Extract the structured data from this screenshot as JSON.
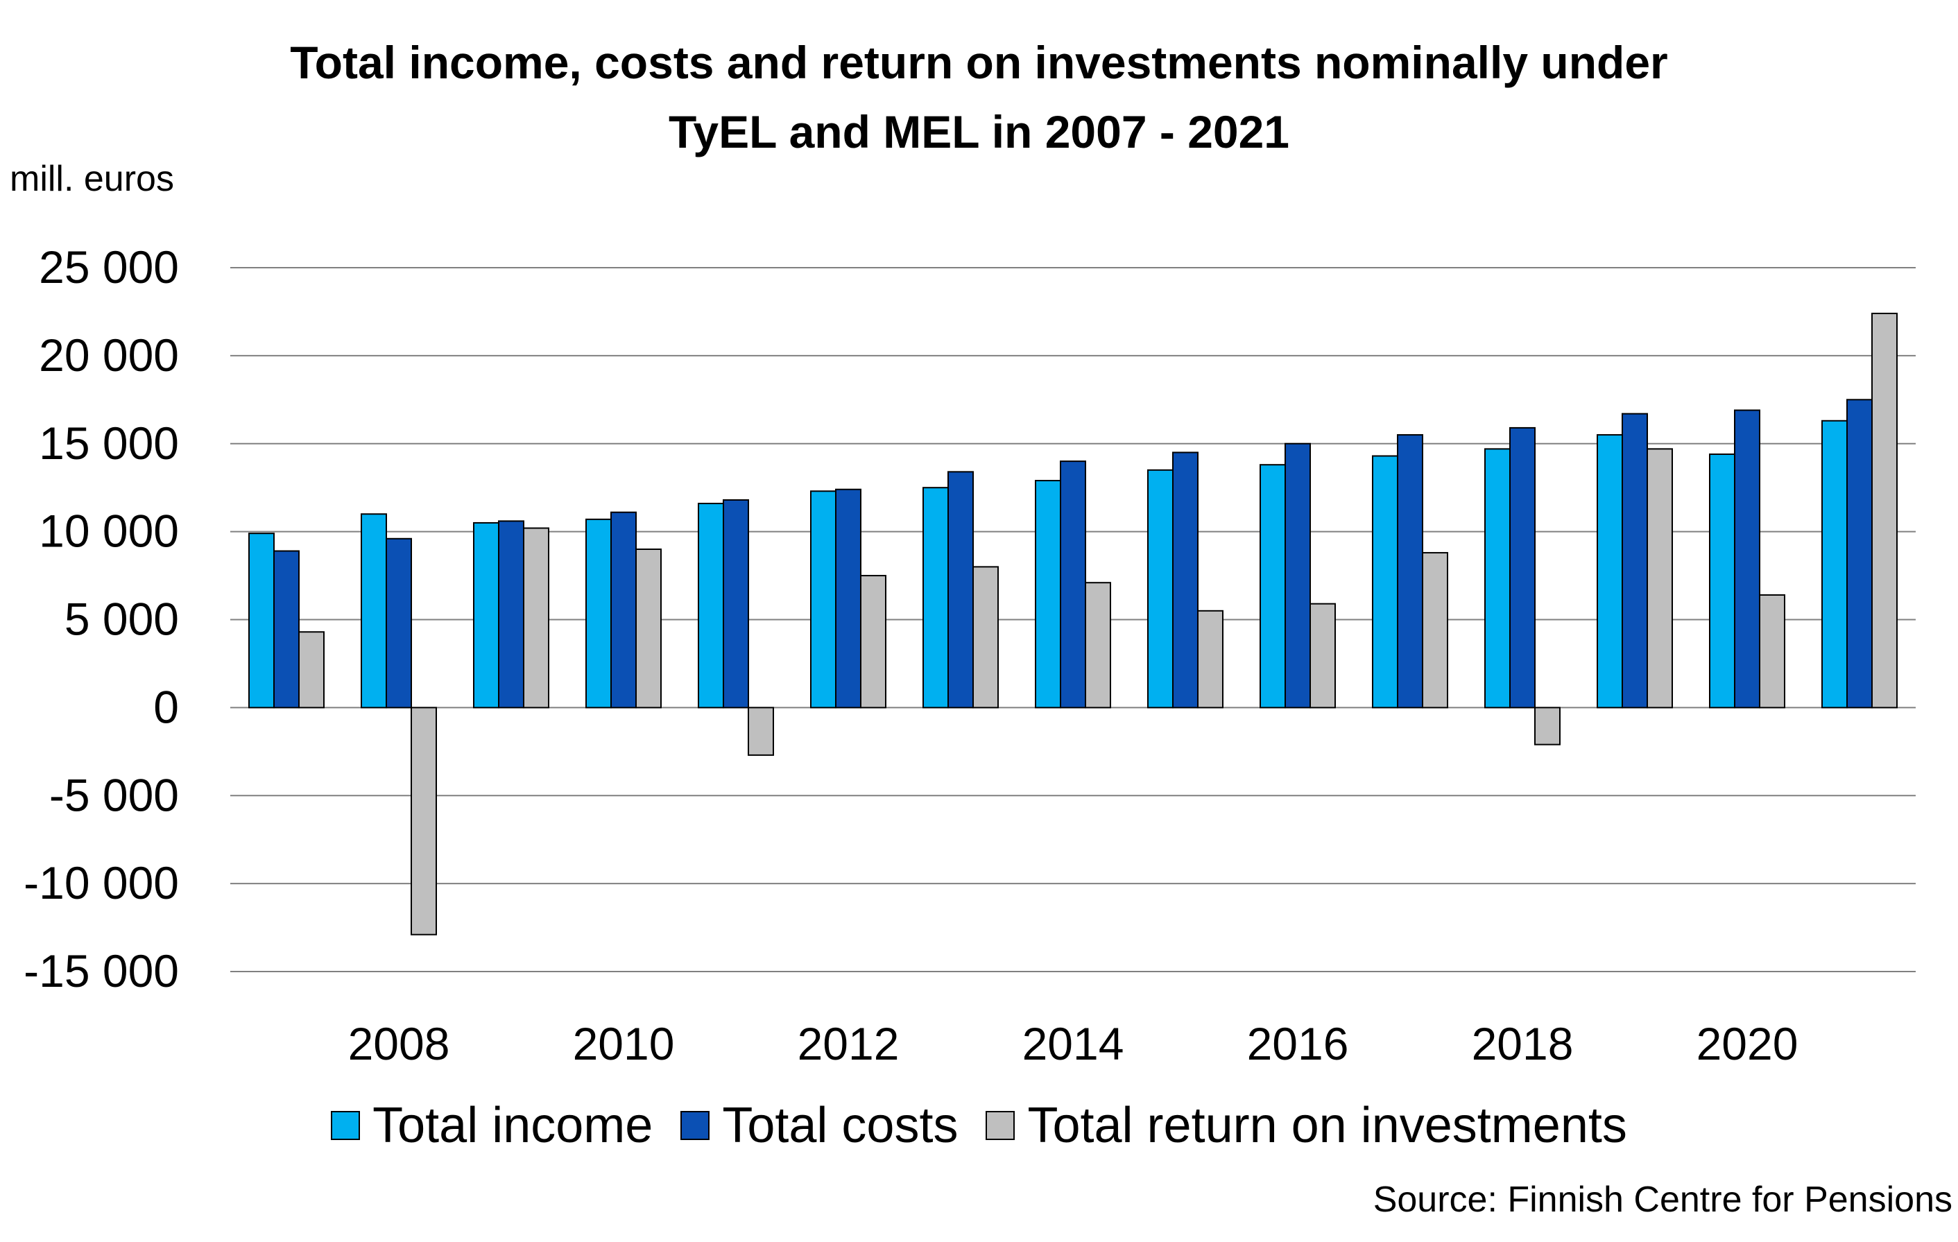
{
  "chart_data": {
    "type": "bar",
    "title_lines": [
      "Total income, costs and return on investments nominally under",
      "TyEL and MEL in 2007 - 2021"
    ],
    "ylabel": "mill. euros",
    "source": "Source: Finnish Centre for Pensions",
    "ylim": [
      -15000,
      25000
    ],
    "ytick_step": 5000,
    "ytick_labels": [
      "25 000",
      "20 000",
      "15 000",
      "10 000",
      "5 000",
      "0",
      "-5 000",
      "-10 000",
      "-15 000"
    ],
    "categories": [
      "2007",
      "2008",
      "2009",
      "2010",
      "2011",
      "2012",
      "2013",
      "2014",
      "2015",
      "2016",
      "2017",
      "2018",
      "2019",
      "2020",
      "2021"
    ],
    "xtick_labels": [
      "2008",
      "2010",
      "2012",
      "2014",
      "2016",
      "2018",
      "2020"
    ],
    "grid": true,
    "legend_position": "bottom",
    "series": [
      {
        "name": "Total income",
        "color": "#00B0F0",
        "values": [
          9900,
          11000,
          10500,
          10700,
          11600,
          12300,
          12500,
          12900,
          13500,
          13800,
          14300,
          14700,
          15500,
          14400,
          16300
        ]
      },
      {
        "name": "Total costs",
        "color": "#0B50B4",
        "values": [
          8900,
          9600,
          10600,
          11100,
          11800,
          12400,
          13400,
          14000,
          14500,
          15000,
          15500,
          15900,
          16700,
          16900,
          17500
        ]
      },
      {
        "name": "Total return on investments",
        "color": "#BFBFBF",
        "values": [
          4300,
          -12900,
          10200,
          9000,
          -2700,
          7500,
          8000,
          7100,
          5500,
          5900,
          8800,
          -2100,
          14700,
          6400,
          22400
        ]
      }
    ]
  }
}
